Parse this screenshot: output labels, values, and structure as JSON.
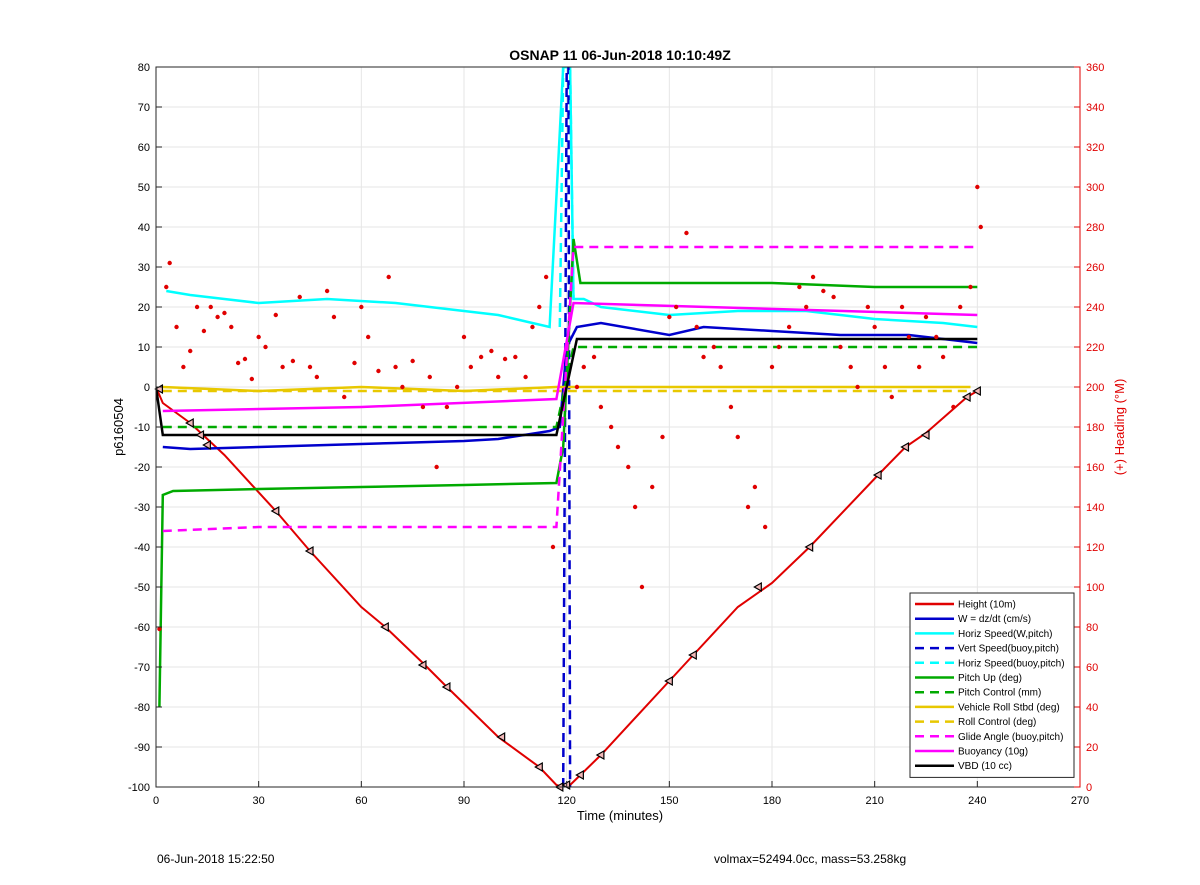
{
  "chart_data": {
    "type": "line",
    "title": "OSNAP 11 06-Jun-2018 10:10:49Z",
    "xlabel": "Time (minutes)",
    "ylabel": "p6160504",
    "ylabel_right": "(+) Heading (°M)",
    "xlim": [
      0,
      270
    ],
    "ylim": [
      -100,
      80
    ],
    "ylim_right": [
      0,
      360
    ],
    "x_ticks": [
      "0",
      "30",
      "60",
      "90",
      "120",
      "150",
      "180",
      "210",
      "240",
      "270"
    ],
    "y_ticks": [
      "-100",
      "-90",
      "-80",
      "-70",
      "-60",
      "-50",
      "-40",
      "-30",
      "-20",
      "-10",
      "0",
      "10",
      "20",
      "30",
      "40",
      "50",
      "60",
      "70",
      "80"
    ],
    "y_ticks_right": [
      "0",
      "20",
      "40",
      "60",
      "80",
      "100",
      "120",
      "140",
      "160",
      "180",
      "200",
      "220",
      "240",
      "260",
      "280",
      "300",
      "320",
      "340",
      "360"
    ],
    "grid": true,
    "legend_position": "bottom-right",
    "colors": {
      "height": "#e00000",
      "w": "#0000cc",
      "horiz": "#00ffff",
      "pitch": "#00aa00",
      "roll": "#e8c800",
      "glide": "#ff00ff",
      "buoyancy": "#ff00ff",
      "vbd": "#000000",
      "heading": "#e00000",
      "right_axis": "#e00000"
    },
    "series": [
      {
        "name": "Height (10m)",
        "style": "solid",
        "color": "#e00000",
        "x": [
          0,
          2,
          10,
          20,
          35,
          45,
          60,
          67,
          78,
          85,
          100,
          112,
          117,
          119,
          121,
          124,
          130,
          150,
          157,
          170,
          180,
          191,
          211,
          219,
          225,
          237,
          240
        ],
        "y": [
          0,
          -4,
          -9,
          -17,
          -31,
          -41,
          -55,
          -60,
          -69,
          -75,
          -87.5,
          -95,
          -99.5,
          -100,
          -99.5,
          -97,
          -92,
          -73.5,
          -67,
          -55,
          -49,
          -40,
          -22,
          -15,
          -11.5,
          -2.5,
          -1
        ]
      },
      {
        "name": "W = dz/dt (cm/s)",
        "style": "solid",
        "color": "#0000cc",
        "x": [
          2,
          10,
          30,
          50,
          70,
          90,
          100,
          115,
          118,
          120,
          123,
          130,
          150,
          160,
          180,
          200,
          220,
          240
        ],
        "y": [
          -15,
          -15.5,
          -15,
          -14.5,
          -14,
          -13.5,
          -13,
          -11,
          -10,
          10,
          15,
          16,
          13,
          15,
          14,
          13,
          13,
          11
        ]
      },
      {
        "name": "Horiz Speed(W,pitch)",
        "style": "solid",
        "color": "#00ffff",
        "x": [
          3,
          10,
          20,
          30,
          50,
          70,
          90,
          100,
          110,
          115,
          119,
          121,
          122,
          125,
          130,
          150,
          170,
          190,
          210,
          230,
          240
        ],
        "y": [
          24,
          23,
          22,
          21,
          22,
          21,
          19,
          18,
          16,
          15,
          80,
          80,
          22,
          22,
          20,
          18,
          19,
          19,
          17,
          16,
          15
        ]
      },
      {
        "name": "Vert Speed(buoy,pitch)",
        "style": "dashed",
        "color": "#0000cc",
        "x": [
          119,
          120,
          120.5,
          121
        ],
        "y": [
          -100,
          80,
          80,
          -100
        ]
      },
      {
        "name": "Horiz Speed(buoy,pitch)",
        "style": "dashed",
        "color": "#00ffff",
        "x": [
          118,
          119,
          121,
          122
        ],
        "y": [
          15,
          80,
          80,
          22
        ]
      },
      {
        "name": "Pitch Up (deg)",
        "style": "solid",
        "color": "#00aa00",
        "x": [
          1,
          2,
          5,
          30,
          60,
          90,
          117,
          119,
          122,
          124,
          150,
          180,
          210,
          240
        ],
        "y": [
          -80,
          -27,
          -26,
          -25.5,
          -25,
          -24.5,
          -24,
          -15,
          37,
          26,
          26,
          26,
          25,
          25
        ]
      },
      {
        "name": "Pitch Control (mm)",
        "style": "dashed",
        "color": "#00aa00",
        "x": [
          2,
          117,
          122,
          240
        ],
        "y": [
          -10,
          -10,
          10,
          10
        ]
      },
      {
        "name": "Vehicle Roll Stbd (deg)",
        "style": "solid",
        "color": "#e8c800",
        "x": [
          2,
          30,
          60,
          90,
          117,
          122,
          150,
          180,
          210,
          238
        ],
        "y": [
          0,
          -1,
          0,
          -1,
          0,
          0,
          0,
          0,
          0,
          0
        ]
      },
      {
        "name": "Roll Control (deg)",
        "style": "dashed",
        "color": "#e8c800",
        "x": [
          2,
          40,
          80,
          117,
          122,
          160,
          200,
          238
        ],
        "y": [
          -1,
          -1,
          -1,
          -1,
          -1,
          -1,
          -1,
          -1
        ]
      },
      {
        "name": "Glide Angle (buoy,pitch)",
        "style": "dashed",
        "color": "#ff00ff",
        "x": [
          2,
          30,
          60,
          90,
          117,
          122,
          150,
          180,
          210,
          240
        ],
        "y": [
          -36,
          -35,
          -35,
          -35,
          -35,
          35,
          35,
          35,
          35,
          35
        ]
      },
      {
        "name": "Buoyancy (10g)",
        "style": "solid",
        "color": "#ff00ff",
        "x": [
          2,
          60,
          117,
          122,
          240
        ],
        "y": [
          -6,
          -5,
          -3,
          21,
          18
        ]
      },
      {
        "name": "VBD (10 cc)",
        "style": "solid",
        "color": "#000000",
        "x": [
          0,
          2,
          117,
          123,
          240
        ],
        "y": [
          0,
          -12,
          -12,
          12,
          12
        ]
      }
    ],
    "heading_points": {
      "name": "Heading",
      "axis": "right",
      "color": "#e00000",
      "x": [
        1,
        3,
        4,
        6,
        8,
        10,
        12,
        14,
        16,
        18,
        20,
        22,
        24,
        26,
        28,
        30,
        32,
        35,
        37,
        40,
        42,
        45,
        47,
        50,
        52,
        55,
        58,
        60,
        62,
        65,
        68,
        70,
        72,
        75,
        78,
        80,
        82,
        85,
        88,
        90,
        92,
        95,
        98,
        100,
        102,
        105,
        108,
        110,
        112,
        114,
        116,
        123,
        125,
        128,
        130,
        133,
        135,
        138,
        140,
        142,
        145,
        148,
        150,
        152,
        155,
        158,
        160,
        163,
        165,
        168,
        170,
        173,
        175,
        178,
        180,
        182,
        185,
        188,
        190,
        192,
        195,
        198,
        200,
        203,
        205,
        208,
        210,
        213,
        215,
        218,
        220,
        223,
        225,
        228,
        230,
        233,
        235,
        238,
        240,
        241
      ],
      "y": [
        79,
        250,
        262,
        230,
        210,
        218,
        240,
        228,
        240,
        235,
        237,
        230,
        212,
        214,
        204,
        225,
        220,
        236,
        210,
        213,
        245,
        210,
        205,
        248,
        235,
        195,
        212,
        240,
        225,
        208,
        255,
        210,
        200,
        213,
        190,
        205,
        160,
        190,
        200,
        225,
        210,
        215,
        218,
        205,
        214,
        215,
        205,
        230,
        240,
        255,
        120,
        200,
        210,
        215,
        190,
        180,
        170,
        160,
        140,
        100,
        150,
        175,
        235,
        240,
        277,
        230,
        215,
        220,
        210,
        190,
        175,
        140,
        150,
        130,
        210,
        220,
        230,
        250,
        240,
        255,
        248,
        245,
        220,
        210,
        200,
        240,
        230,
        210,
        195,
        240,
        225,
        210,
        235,
        225,
        215,
        190,
        240,
        250,
        300,
        280
      ]
    },
    "markers": {
      "name": "Height markers",
      "x": [
        1,
        10,
        13,
        15,
        35,
        45,
        67,
        78,
        85,
        101,
        112,
        118,
        120,
        124,
        130,
        150,
        157,
        176,
        191,
        211,
        219,
        225,
        237,
        240
      ],
      "y": [
        -0.5,
        -9,
        -12,
        -14.5,
        -31,
        -41,
        -60,
        -69.5,
        -75,
        -87.5,
        -95,
        -100,
        -99.5,
        -97,
        -92,
        -73.5,
        -67,
        -50,
        -40,
        -22,
        -15,
        -12,
        -2.5,
        -1
      ]
    }
  },
  "footer": {
    "left": "06-Jun-2018 15:22:50",
    "right": "volmax=52494.0cc, mass=53.258kg"
  }
}
